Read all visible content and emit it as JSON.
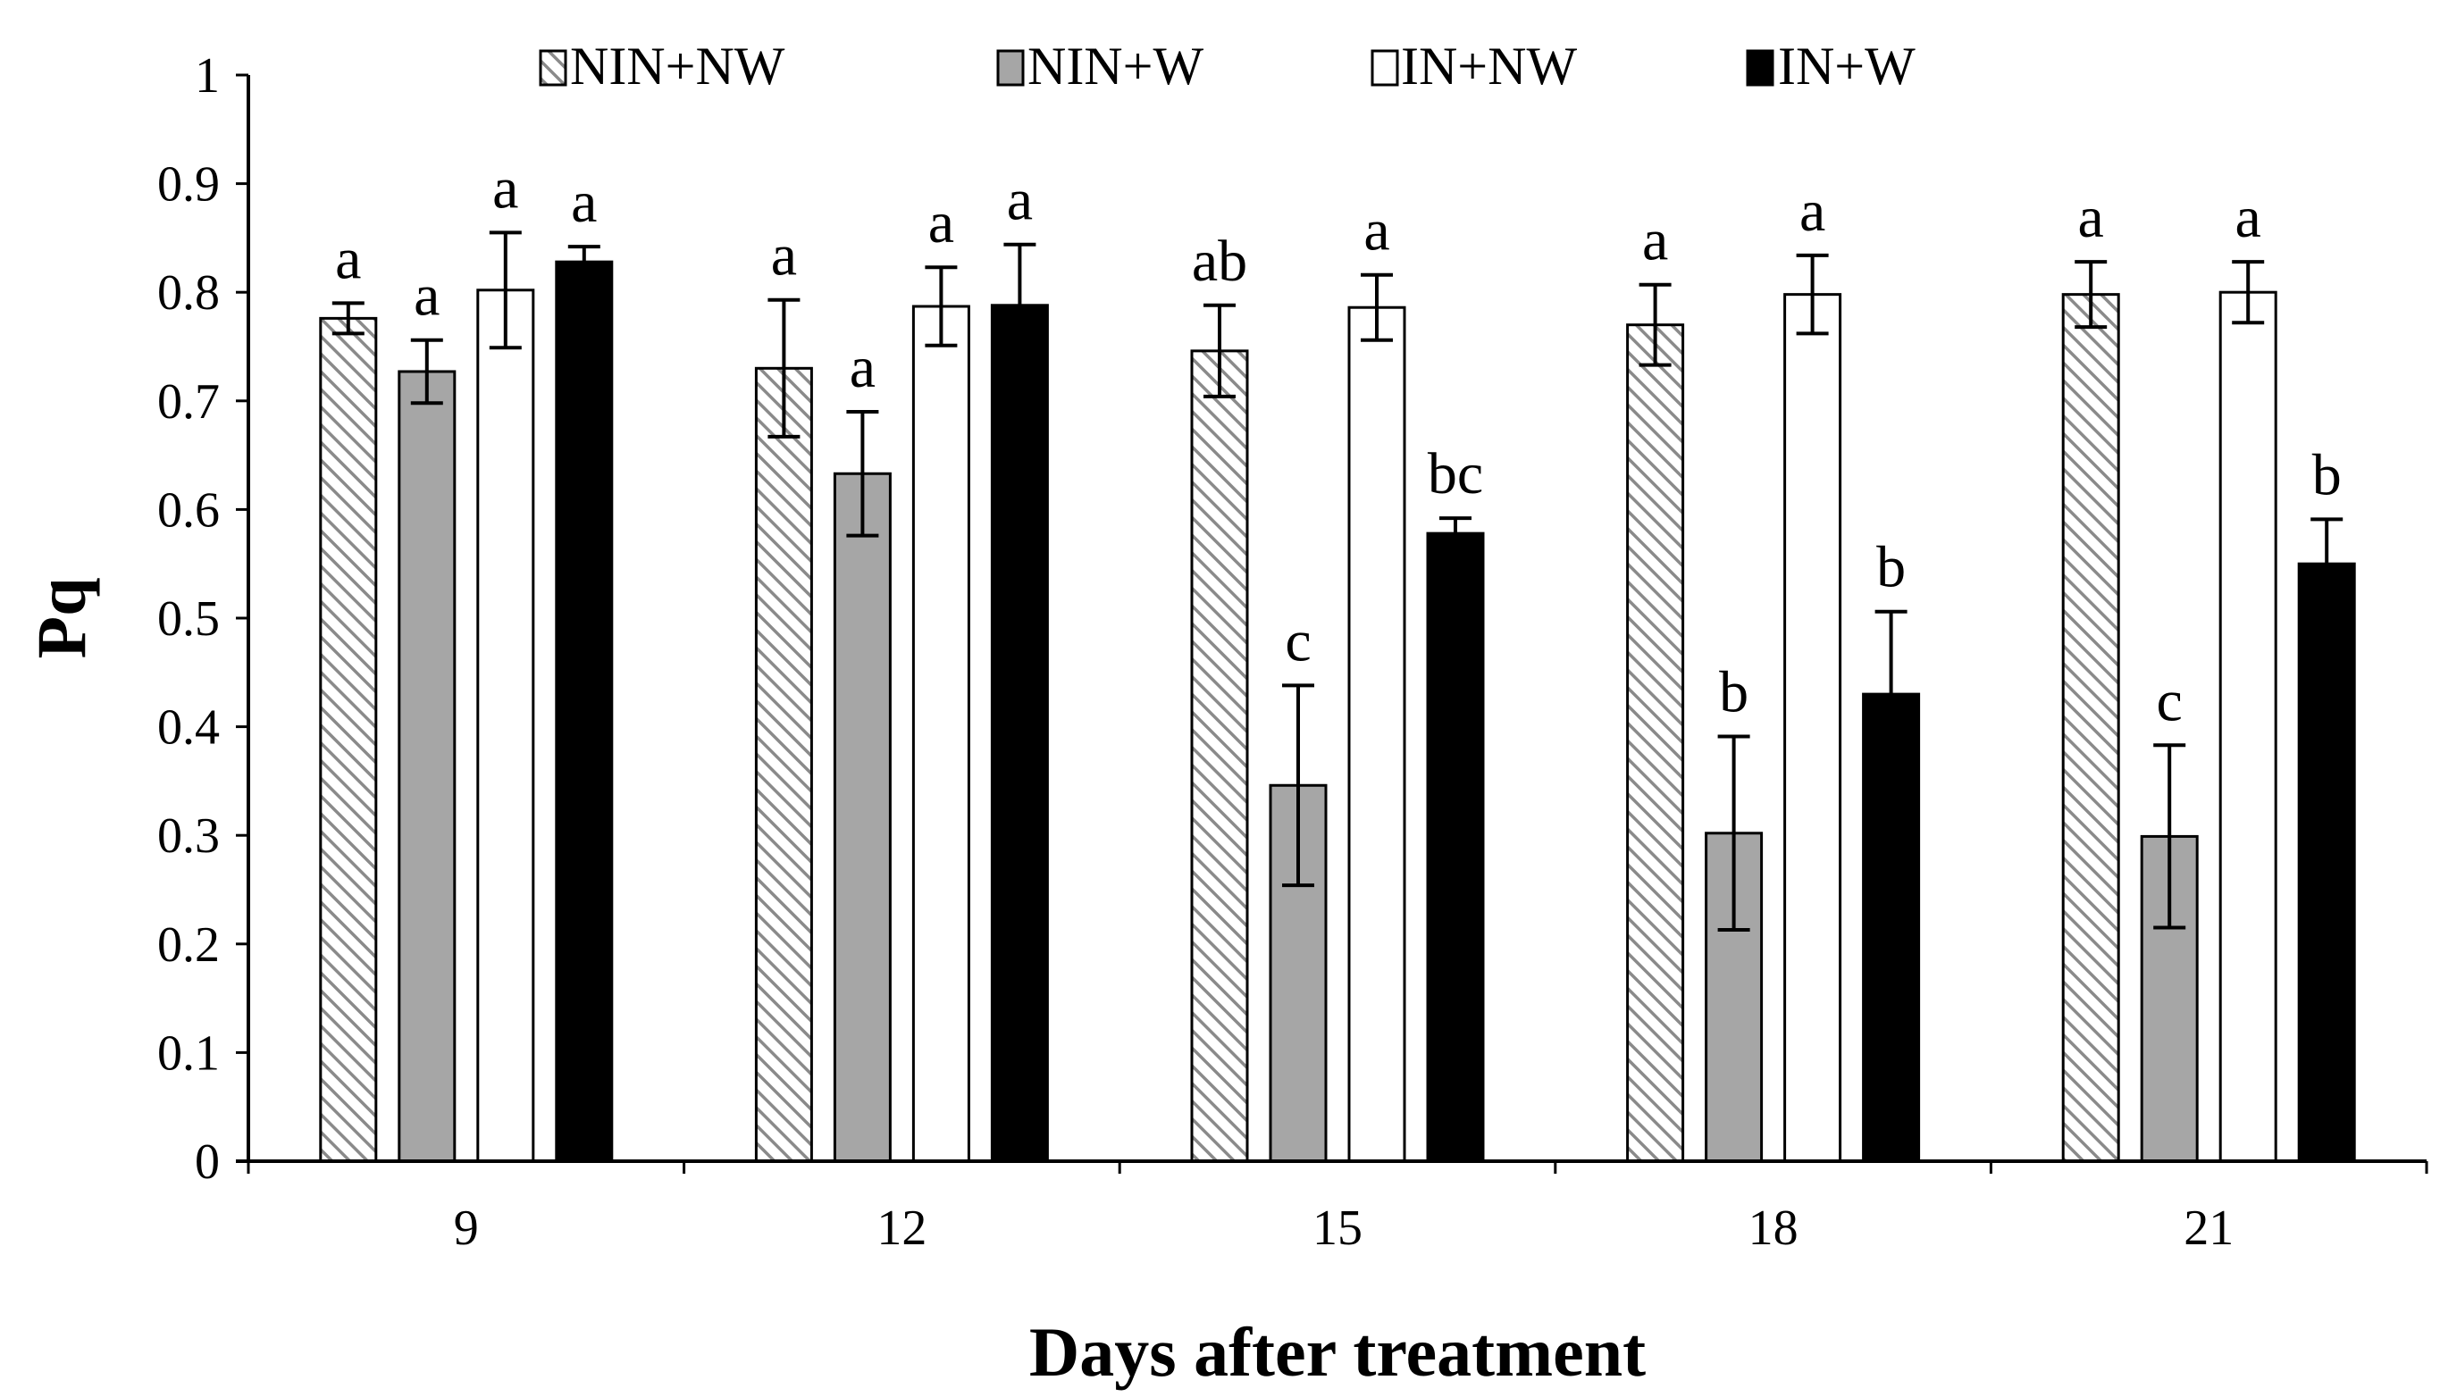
{
  "chart_data": {
    "type": "bar",
    "title": "",
    "xlabel": "Days after treatment",
    "ylabel": "Pq",
    "ylim": [
      0,
      1
    ],
    "yticks": [
      "0",
      "0.1",
      "0.2",
      "0.3",
      "0.4",
      "0.5",
      "0.6",
      "0.7",
      "0.8",
      "0.9",
      "1"
    ],
    "categories": [
      "9",
      "12",
      "15",
      "18",
      "21"
    ],
    "legend_position": "top",
    "series": [
      {
        "name": "NIN+NW",
        "pattern": "hatched",
        "fill": "#ffffff",
        "hatch_color": "#888888",
        "values": [
          0.776,
          0.73,
          0.746,
          0.77,
          0.798
        ],
        "errors": [
          0.014,
          0.063,
          0.042,
          0.037,
          0.03
        ],
        "letters": [
          "a",
          "a",
          "ab",
          "a",
          "a"
        ]
      },
      {
        "name": "NIN+W",
        "pattern": "solid",
        "fill": "#a6a6a6",
        "values": [
          0.727,
          0.633,
          0.346,
          0.302,
          0.299
        ],
        "errors": [
          0.029,
          0.057,
          0.092,
          0.089,
          0.084
        ],
        "letters": [
          "a",
          "a",
          "c",
          "b",
          "c"
        ]
      },
      {
        "name": "IN+NW",
        "pattern": "solid",
        "fill": "#ffffff",
        "values": [
          0.802,
          0.787,
          0.786,
          0.798,
          0.8
        ],
        "errors": [
          0.053,
          0.036,
          0.03,
          0.036,
          0.028
        ],
        "letters": [
          "a",
          "a",
          "a",
          "a",
          "a"
        ]
      },
      {
        "name": "IN+W",
        "pattern": "solid",
        "fill": "#000000",
        "values": [
          0.828,
          0.788,
          0.578,
          0.43,
          0.55
        ],
        "errors": [
          0.014,
          0.056,
          0.014,
          0.076,
          0.041
        ],
        "letters": [
          "a",
          "a",
          "bc",
          "b",
          "b"
        ]
      }
    ]
  }
}
